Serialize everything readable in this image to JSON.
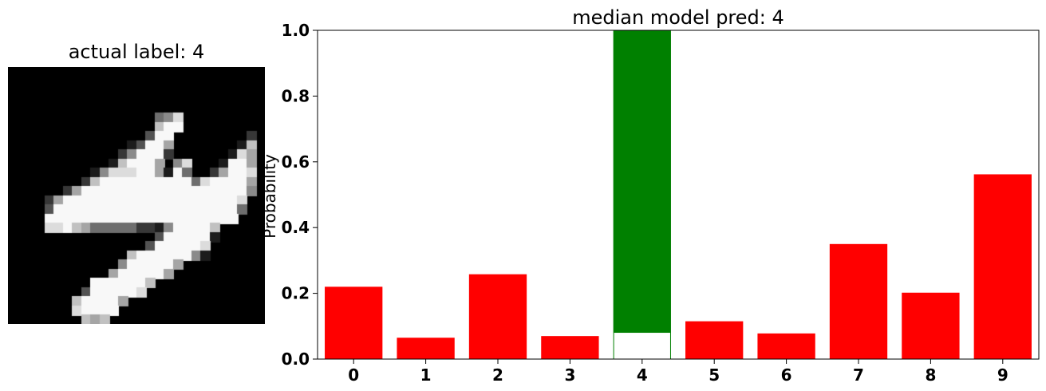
{
  "image_panel": {
    "title": "actual label: 4",
    "pixel_rows": [
      "0000000000000000000000000000",
      "0000000000000000000000000000",
      "0000000000000000000000000000",
      "0000000000000000000000000000",
      "0000000000000000000000000000",
      "0000000000000000458000000000",
      "0000000000000000799000000000",
      "0000000000000003990000000020",
      "0000000000000139960000000170",
      "0000000000002599920000001860",
      "0000000000017999605800019960",
      "0000000001588899619400269980",
      "0000000027999999999948999960",
      "0000002699999999999999999950",
      "0000269999999999999999999800",
      "0000399999999999999999999400",
      "0000999999999999999999999000",
      "0000889764444422159999700000",
      "0000000000000000399999100000",
      "0000000000000003999998000000",
      "0000000000000799999951000000",
      "0000000000005999996000000000",
      "0000000000069999960000000000",
      "0000000009999997000000000000",
      "0000000039999980000000000000",
      "0000000799996000000000000000",
      "0000000899990000000000000000",
      "0000000076700000000000000000"
    ]
  },
  "chart_data": {
    "type": "bar",
    "title": "median model pred: 4",
    "xlabel": "",
    "ylabel": "Probability",
    "ylim": [
      0,
      1.0
    ],
    "categories": [
      "0",
      "1",
      "2",
      "3",
      "4",
      "5",
      "6",
      "7",
      "8",
      "9"
    ],
    "series": [
      {
        "values": [
          0.22,
          0.065,
          0.258,
          0.07,
          1.0,
          0.115,
          0.078,
          0.35,
          0.202,
          0.562
        ]
      }
    ],
    "inner_bar": {
      "category": "4",
      "value": 0.08,
      "color": "#ffffff"
    },
    "y_ticks": [
      "0.0",
      "0.2",
      "0.4",
      "0.6",
      "0.8",
      "1.0"
    ],
    "colors": {
      "predicted": "#008000",
      "other": "#ff0000"
    },
    "predicted_category": "4",
    "grid": false,
    "legend": "none"
  }
}
